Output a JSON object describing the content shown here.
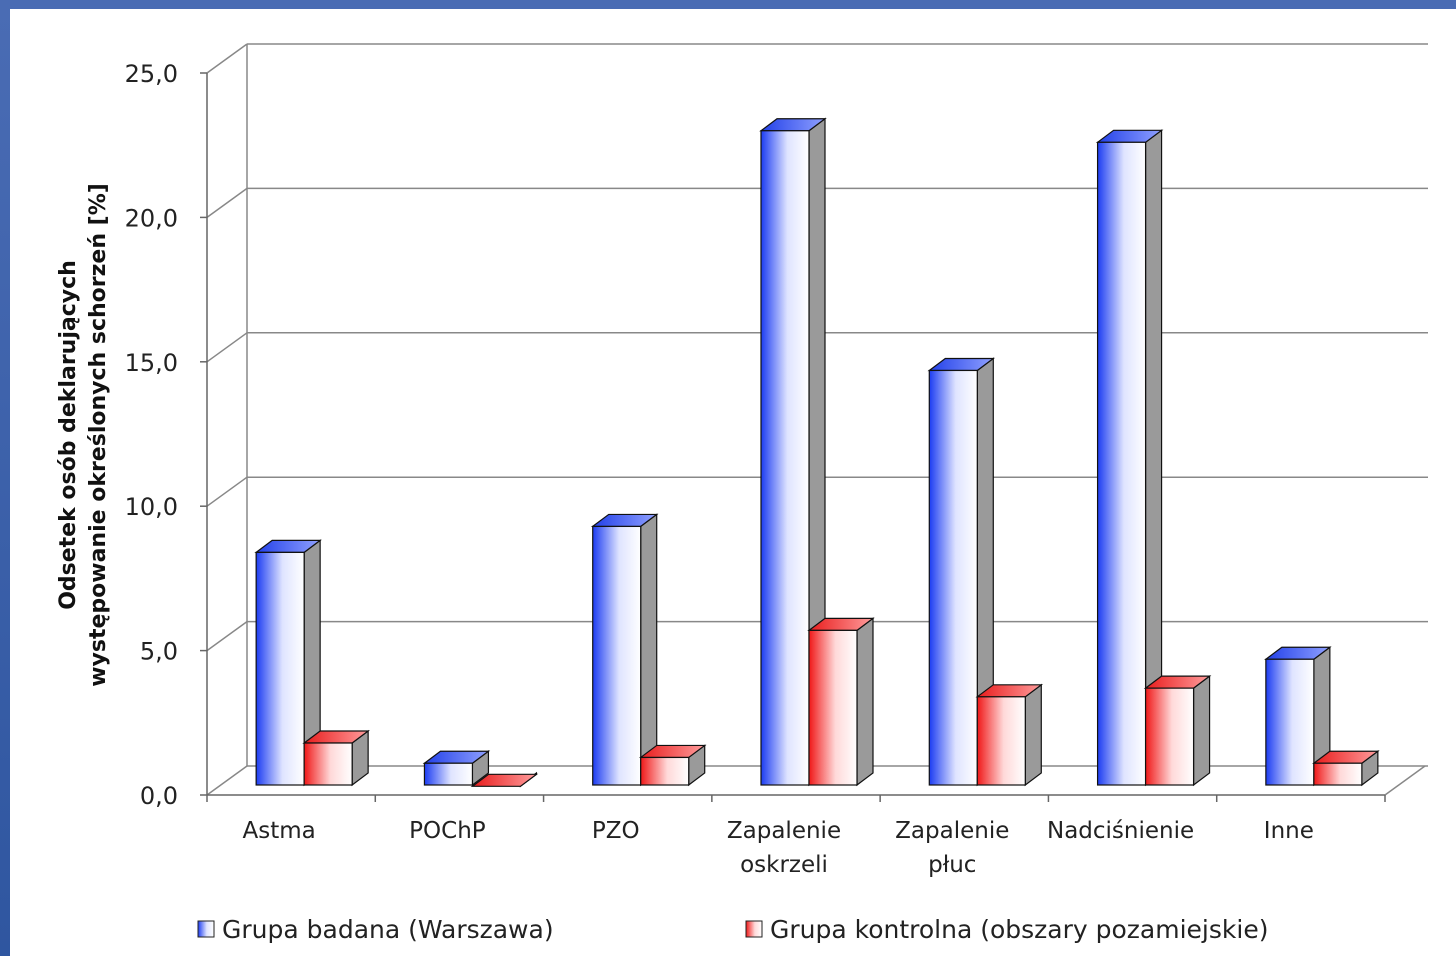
{
  "chart_data": {
    "type": "bar",
    "ylabel_line1": "Odsetek osób deklarujących",
    "ylabel_line2": "występowanie określonych schorzeń [%]",
    "ylim": [
      0,
      25
    ],
    "yticks": [
      "0,0",
      "5,0",
      "10,0",
      "15,0",
      "20,0",
      "25,0"
    ],
    "ytick_values": [
      0,
      5,
      10,
      15,
      20,
      25
    ],
    "grid": true,
    "legend_position": "bottom",
    "categories": [
      [
        "Astma"
      ],
      [
        "POChP"
      ],
      [
        "PZO"
      ],
      [
        "Zapalenie",
        "oskrzeli"
      ],
      [
        "Zapalenie",
        "płuc"
      ],
      [
        "Nadciśnienie"
      ],
      [
        "Inne"
      ]
    ],
    "series": [
      {
        "name": "Grupa badana (Warszawa)",
        "color": "#2a4cff",
        "values": [
          8.4,
          1.1,
          9.3,
          23.0,
          14.7,
          22.6,
          4.7
        ]
      },
      {
        "name": "Grupa kontrolna (obszary pozamiejskie)",
        "color": "#ff2020",
        "values": [
          1.8,
          0.3,
          1.3,
          5.7,
          3.4,
          3.7,
          1.1
        ]
      }
    ]
  }
}
